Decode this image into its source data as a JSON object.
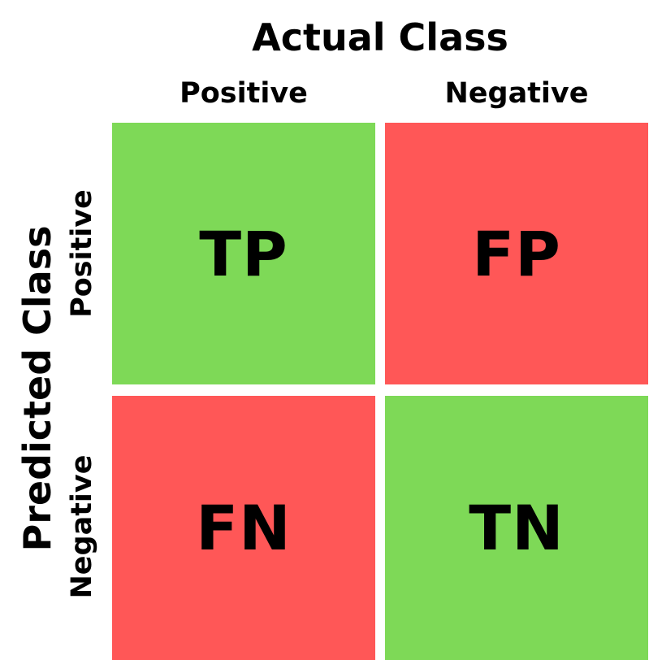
{
  "header": {
    "actual_title": "Actual Class",
    "col_positive": "Positive",
    "col_negative": "Negative"
  },
  "side": {
    "predicted_title": "Predicted Class",
    "row_positive": "Positive",
    "row_negative": "Negative"
  },
  "cells": {
    "tp": {
      "label": "TP",
      "color": "#7ED957"
    },
    "fp": {
      "label": "FP",
      "color": "#FF5757"
    },
    "fn": {
      "label": "FN",
      "color": "#FF5757"
    },
    "tn": {
      "label": "TN",
      "color": "#7ED957"
    }
  }
}
